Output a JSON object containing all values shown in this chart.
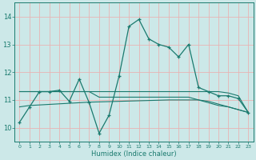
{
  "x": [
    0,
    1,
    2,
    3,
    4,
    5,
    6,
    7,
    8,
    9,
    10,
    11,
    12,
    13,
    14,
    15,
    16,
    17,
    18,
    19,
    20,
    21,
    22,
    23
  ],
  "line1": [
    10.2,
    10.75,
    11.3,
    11.3,
    11.35,
    10.95,
    11.75,
    10.9,
    9.8,
    10.45,
    11.85,
    13.65,
    13.9,
    13.2,
    13.0,
    12.9,
    12.55,
    13.0,
    11.45,
    11.3,
    11.15,
    11.15,
    11.05,
    10.55
  ],
  "line2": [
    11.3,
    11.3,
    11.3,
    11.3,
    11.3,
    11.3,
    11.3,
    11.3,
    11.3,
    11.3,
    11.3,
    11.3,
    11.3,
    11.3,
    11.3,
    11.3,
    11.3,
    11.3,
    11.3,
    11.3,
    11.3,
    11.25,
    11.15,
    10.55
  ],
  "line3": [
    10.75,
    10.8,
    10.82,
    10.84,
    10.86,
    10.88,
    10.9,
    10.92,
    10.93,
    10.94,
    10.95,
    10.96,
    10.97,
    10.98,
    10.99,
    11.0,
    11.0,
    11.0,
    11.0,
    10.95,
    10.85,
    10.75,
    10.65,
    10.55
  ],
  "line4": [
    11.3,
    11.3,
    11.3,
    11.3,
    11.3,
    11.3,
    11.3,
    11.3,
    11.1,
    11.1,
    11.1,
    11.1,
    11.1,
    11.1,
    11.1,
    11.1,
    11.1,
    11.1,
    11.0,
    10.9,
    10.8,
    10.75,
    10.65,
    10.55
  ],
  "color": "#1a7a6e",
  "bg_color": "#cce8e8",
  "grid_color": "#e8b4b4",
  "xlabel": "Humidex (Indice chaleur)",
  "ylim": [
    9.5,
    14.5
  ],
  "xlim": [
    -0.5,
    23.5
  ],
  "yticks": [
    10,
    11,
    12,
    13,
    14
  ],
  "xticks": [
    0,
    1,
    2,
    3,
    4,
    5,
    6,
    7,
    8,
    9,
    10,
    11,
    12,
    13,
    14,
    15,
    16,
    17,
    18,
    19,
    20,
    21,
    22,
    23
  ]
}
